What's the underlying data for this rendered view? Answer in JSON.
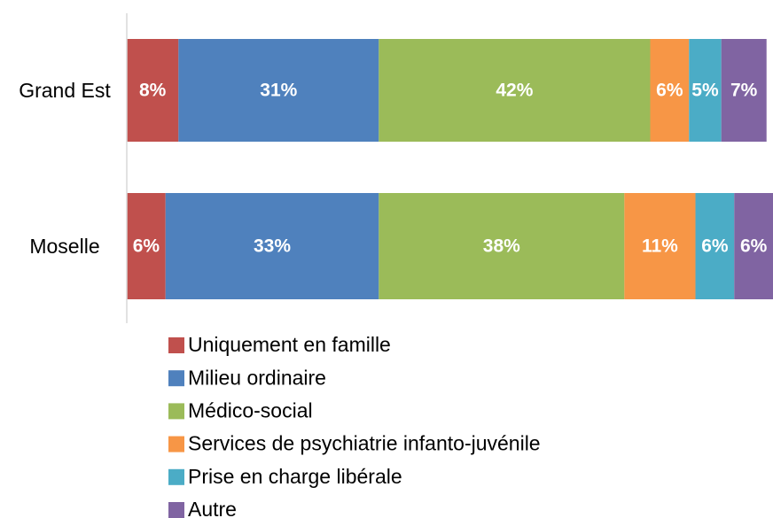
{
  "chart_data": {
    "type": "stacked_bar_horizontal",
    "categories": [
      "Grand Est",
      "Moselle"
    ],
    "xlim": [
      0,
      100
    ],
    "series": [
      {
        "name": "Uniquement en famille",
        "color": "#c0504d",
        "values": [
          8,
          6
        ],
        "value_labels": [
          "8%",
          "6%"
        ]
      },
      {
        "name": "Milieu ordinaire",
        "color": "#4f81bd",
        "values": [
          31,
          33
        ],
        "value_labels": [
          "31%",
          "33%"
        ]
      },
      {
        "name": "Médico-social",
        "color": "#9bbb59",
        "values": [
          42,
          38
        ],
        "value_labels": [
          "42%",
          "38%"
        ]
      },
      {
        "name": "Services de psychiatrie infanto-juvénile",
        "color": "#f79646",
        "values": [
          6,
          11
        ],
        "value_labels": [
          "6%",
          "11%"
        ]
      },
      {
        "name": "Prise en charge libérale",
        "color": "#4bacc6",
        "values": [
          5,
          6
        ],
        "value_labels": [
          "5%",
          "6%"
        ]
      },
      {
        "name": "Autre",
        "color": "#8064a2",
        "values": [
          7,
          6
        ],
        "value_labels": [
          "7%",
          "6%"
        ]
      }
    ]
  }
}
